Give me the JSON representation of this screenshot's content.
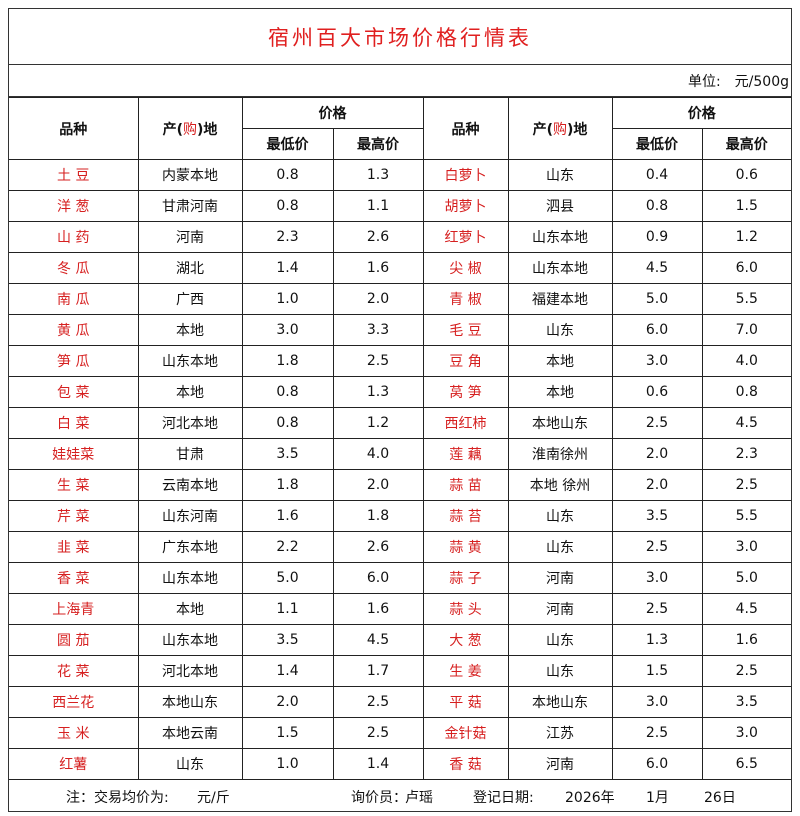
{
  "title": "宿州百大市场价格行情表",
  "unit_label": "单位:",
  "unit_value": "元/500g",
  "headers": {
    "variety": "品种",
    "origin_pre": "产(",
    "origin_red": "购",
    "origin_post": ")地",
    "price": "价格",
    "min": "最低价",
    "max": "最高价"
  },
  "left_rows": [
    [
      "土 豆",
      "内蒙本地",
      "0.8",
      "1.3"
    ],
    [
      "洋 葱",
      "甘肃河南",
      "0.8",
      "1.1"
    ],
    [
      "山 药",
      "河南",
      "2.3",
      "2.6"
    ],
    [
      "冬 瓜",
      "湖北",
      "1.4",
      "1.6"
    ],
    [
      "南 瓜",
      "广西",
      "1.0",
      "2.0"
    ],
    [
      "黄 瓜",
      "本地",
      "3.0",
      "3.3"
    ],
    [
      "笋 瓜",
      "山东本地",
      "1.8",
      "2.5"
    ],
    [
      "包 菜",
      "本地",
      "0.8",
      "1.3"
    ],
    [
      "白 菜",
      "河北本地",
      "0.8",
      "1.2"
    ],
    [
      "娃娃菜",
      "甘肃",
      "3.5",
      "4.0"
    ],
    [
      "生 菜",
      "云南本地",
      "1.8",
      "2.0"
    ],
    [
      "芹 菜",
      "山东河南",
      "1.6",
      "1.8"
    ],
    [
      "韭 菜",
      "广东本地",
      "2.2",
      "2.6"
    ],
    [
      "香 菜",
      "山东本地",
      "5.0",
      "6.0"
    ],
    [
      "上海青",
      "本地",
      "1.1",
      "1.6"
    ],
    [
      "圆 茄",
      "山东本地",
      "3.5",
      "4.5"
    ],
    [
      "花 菜",
      "河北本地",
      "1.4",
      "1.7"
    ],
    [
      "西兰花",
      "本地山东",
      "2.0",
      "2.5"
    ],
    [
      "玉 米",
      "本地云南",
      "1.5",
      "2.5"
    ],
    [
      "红薯",
      "山东",
      "1.0",
      "1.4"
    ]
  ],
  "right_rows": [
    [
      "白萝卜",
      "山东",
      "0.4",
      "0.6"
    ],
    [
      "胡萝卜",
      "泗县",
      "0.8",
      "1.5"
    ],
    [
      "红萝卜",
      "山东本地",
      "0.9",
      "1.2"
    ],
    [
      "尖 椒",
      "山东本地",
      "4.5",
      "6.0"
    ],
    [
      "青 椒",
      "福建本地",
      "5.0",
      "5.5"
    ],
    [
      "毛 豆",
      "山东",
      "6.0",
      "7.0"
    ],
    [
      "豆 角",
      "本地",
      "3.0",
      "4.0"
    ],
    [
      "莴 笋",
      "本地",
      "0.6",
      "0.8"
    ],
    [
      "西红柿",
      "本地山东",
      "2.5",
      "4.5"
    ],
    [
      "莲 藕",
      "淮南徐州",
      "2.0",
      "2.3"
    ],
    [
      "蒜 苗",
      "本地 徐州",
      "2.0",
      "2.5"
    ],
    [
      "蒜 苔",
      "山东",
      "3.5",
      "5.5"
    ],
    [
      "蒜 黄",
      "山东",
      "2.5",
      "3.0"
    ],
    [
      "蒜 子",
      "河南",
      "3.0",
      "5.0"
    ],
    [
      "蒜 头",
      "河南",
      "2.5",
      "4.5"
    ],
    [
      "大 葱",
      "山东",
      "1.3",
      "1.6"
    ],
    [
      "生 姜",
      "山东",
      "1.5",
      "2.5"
    ],
    [
      "平 菇",
      "本地山东",
      "3.0",
      "3.5"
    ],
    [
      "金针菇",
      "江苏",
      "2.5",
      "3.0"
    ],
    [
      "香 菇",
      "河南",
      "6.0",
      "6.5"
    ]
  ],
  "footer": {
    "note": "注：交易均价为:",
    "note_unit": "元/斤",
    "inquirer_label": "询价员：",
    "inquirer": "卢瑶",
    "date_label": "登记日期:",
    "year": "2026年",
    "month": "1月",
    "day": "26日"
  },
  "colors": {
    "accent_red": "#d62020",
    "border": "#222222"
  }
}
